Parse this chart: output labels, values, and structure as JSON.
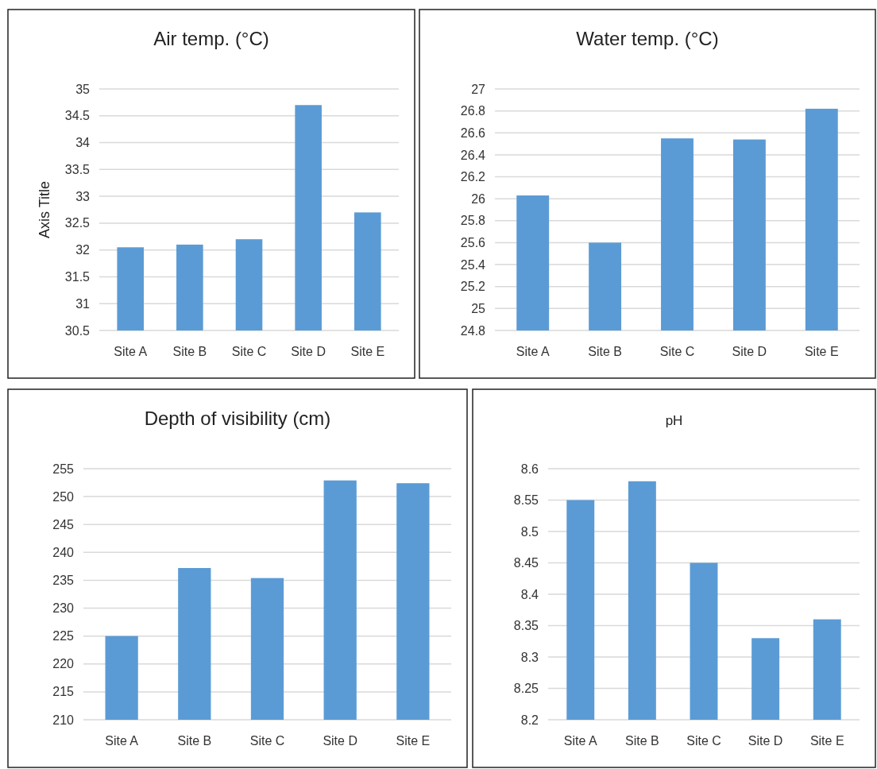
{
  "chart_data": [
    {
      "type": "bar",
      "title": "Air temp. (°C)",
      "ylabel": "Axis Title",
      "categories": [
        "Site A",
        "Site B",
        "Site C",
        "Site D",
        "Site E"
      ],
      "values": [
        32.05,
        32.1,
        32.2,
        34.7,
        32.7
      ],
      "color": "#5b9bd5",
      "ylim": [
        30.5,
        35
      ],
      "yticks": [
        30.5,
        31,
        31.5,
        32,
        32.5,
        33,
        33.5,
        34,
        34.5,
        35
      ],
      "grid": "y"
    },
    {
      "type": "bar",
      "title": "Water temp. (°C)",
      "categories": [
        "Site A",
        "Site B",
        "Site C",
        "Site D",
        "Site E"
      ],
      "values": [
        26.03,
        25.6,
        26.55,
        26.54,
        26.82
      ],
      "color": "#5b9bd5",
      "ylim": [
        24.8,
        27
      ],
      "yticks": [
        24.8,
        25,
        25.2,
        25.4,
        25.6,
        25.8,
        26,
        26.2,
        26.4,
        26.6,
        26.8,
        27
      ],
      "grid": "y"
    },
    {
      "type": "bar",
      "title": "Depth of visibility (cm)",
      "categories": [
        "Site A",
        "Site B",
        "Site C",
        "Site D",
        "Site E"
      ],
      "values": [
        225,
        237.2,
        235.4,
        252.9,
        252.4
      ],
      "color": "#5b9bd5",
      "ylim": [
        210,
        255
      ],
      "yticks": [
        210,
        215,
        220,
        225,
        230,
        235,
        240,
        245,
        250,
        255
      ],
      "grid": "y"
    },
    {
      "type": "bar",
      "title": "pH",
      "categories": [
        "Site A",
        "Site B",
        "Site C",
        "Site D",
        "Site E"
      ],
      "values": [
        8.55,
        8.58,
        8.45,
        8.33,
        8.36
      ],
      "color": "#5b9bd5",
      "ylim": [
        8.2,
        8.6
      ],
      "yticks": [
        8.2,
        8.25,
        8.3,
        8.35,
        8.4,
        8.45,
        8.5,
        8.55,
        8.6
      ],
      "grid": "y"
    }
  ]
}
